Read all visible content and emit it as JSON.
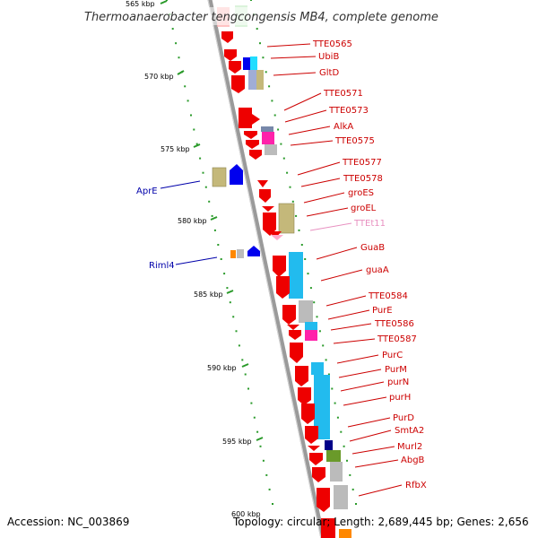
{
  "title": "Thermoanaerobacter tengcongensis MB4, complete genome",
  "footer": {
    "accession": "Accession: NC_003869",
    "summary": "Topology: circular; Length: 2,689,445 bp; Genes: 2,656"
  },
  "scale_labels": [
    "565 kbp",
    "570 kbp",
    "575 kbp",
    "580 kbp",
    "585 kbp",
    "590 kbp",
    "595 kbp",
    "600 kbp"
  ],
  "colors": {
    "label_red": "#cc0000",
    "label_blue": "#0000aa",
    "label_pink": "#e890c0",
    "gene_red": "#ee0000",
    "gene_blue": "#0000ee",
    "gene_cyan": "#22bbee",
    "gene_olive": "#c4b87a",
    "gene_gray": "#bbbbbb",
    "gene_magenta": "#ff22aa",
    "gene_orange": "#ff8800",
    "gene_green": "#6a9a2a",
    "backbone": "#888888",
    "tick_green": "#2a9a2a"
  },
  "gene_labels": [
    {
      "text": "TTE0565",
      "color": "red"
    },
    {
      "text": "UbiB",
      "color": "red"
    },
    {
      "text": "GltD",
      "color": "red"
    },
    {
      "text": "TTE0571",
      "color": "red"
    },
    {
      "text": "TTE0573",
      "color": "red"
    },
    {
      "text": "AlkA",
      "color": "red"
    },
    {
      "text": "TTE0575",
      "color": "red"
    },
    {
      "text": "TTE0577",
      "color": "red"
    },
    {
      "text": "TTE0578",
      "color": "red"
    },
    {
      "text": "groES",
      "color": "red"
    },
    {
      "text": "groEL",
      "color": "red"
    },
    {
      "text": "TTEt11",
      "color": "pink"
    },
    {
      "text": "GuaB",
      "color": "red"
    },
    {
      "text": "guaA",
      "color": "red"
    },
    {
      "text": "TTE0584",
      "color": "red"
    },
    {
      "text": "PurE",
      "color": "red"
    },
    {
      "text": "TTE0586",
      "color": "red"
    },
    {
      "text": "TTE0587",
      "color": "red"
    },
    {
      "text": "PurC",
      "color": "red"
    },
    {
      "text": "PurM",
      "color": "red"
    },
    {
      "text": "purN",
      "color": "red"
    },
    {
      "text": "purH",
      "color": "red"
    },
    {
      "text": "PurD",
      "color": "red"
    },
    {
      "text": "SmtA2",
      "color": "red"
    },
    {
      "text": "Murl2",
      "color": "red"
    },
    {
      "text": "AbgB",
      "color": "red"
    },
    {
      "text": "RfbX",
      "color": "red"
    },
    {
      "text": "AprE",
      "color": "blue"
    },
    {
      "text": "Riml4",
      "color": "blue"
    }
  ]
}
